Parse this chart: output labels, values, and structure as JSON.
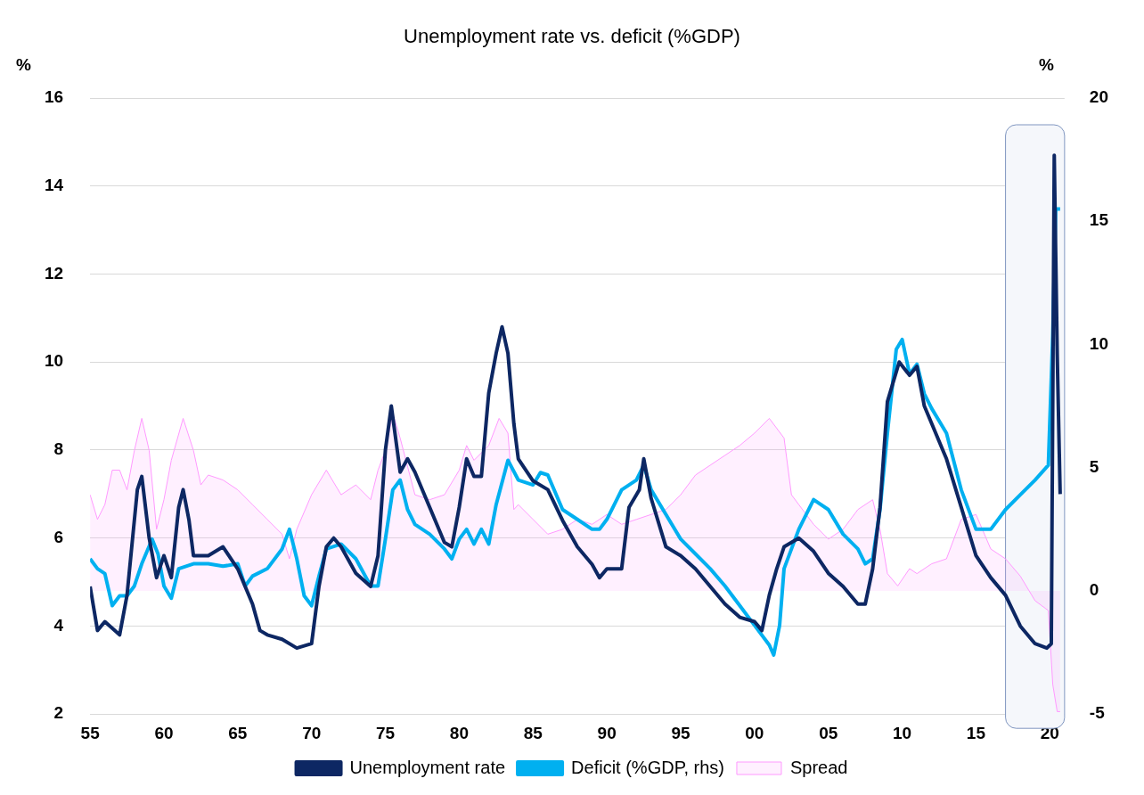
{
  "chart_data": {
    "type": "line",
    "title": "Unemployment rate vs. deficit (%GDP)",
    "ylabel": "%",
    "y2label": "%",
    "xlim": [
      1955,
      2021
    ],
    "xticks": [
      {
        "value": 1955,
        "label": "55"
      },
      {
        "value": 1960,
        "label": "60"
      },
      {
        "value": 1965,
        "label": "65"
      },
      {
        "value": 1970,
        "label": "70"
      },
      {
        "value": 1975,
        "label": "75"
      },
      {
        "value": 1980,
        "label": "80"
      },
      {
        "value": 1985,
        "label": "85"
      },
      {
        "value": 1990,
        "label": "90"
      },
      {
        "value": 1995,
        "label": "95"
      },
      {
        "value": 2000,
        "label": "00"
      },
      {
        "value": 2005,
        "label": "05"
      },
      {
        "value": 2010,
        "label": "10"
      },
      {
        "value": 2015,
        "label": "15"
      },
      {
        "value": 2020,
        "label": "20"
      }
    ],
    "ylim": [
      2,
      16
    ],
    "yticks": [
      2,
      4,
      6,
      8,
      10,
      12,
      14,
      16
    ],
    "y2lim": [
      -5,
      20
    ],
    "y2ticks": [
      -5,
      0,
      5,
      10,
      15,
      20
    ],
    "grid": "y",
    "legend": "bottom",
    "marker": "none",
    "line_style": "solid",
    "bands": [
      {
        "axis": "x",
        "from": 2017,
        "to": 2021,
        "color": "#f5f7fb"
      }
    ],
    "series": [
      {
        "name": "Spread",
        "type": "area",
        "axis": "y2",
        "color": "#ff99ff",
        "x": [
          1955,
          1955.5,
          1956,
          1956.5,
          1957,
          1957.5,
          1958,
          1958.5,
          1959,
          1959.5,
          1960,
          1960.5,
          1961.3,
          1962,
          1962.5,
          1963,
          1964,
          1965,
          1966,
          1967,
          1968,
          1968.5,
          1969,
          1970,
          1971,
          1972,
          1973,
          1974,
          1974.5,
          1975,
          1975.5,
          1976,
          1977,
          1978,
          1979,
          1980,
          1980.5,
          1981,
          1982,
          1982.7,
          1983.3,
          1983.7,
          1984,
          1985,
          1986,
          1987,
          1988,
          1989,
          1990,
          1991,
          1992,
          1993,
          1994,
          1995,
          1996,
          1997,
          1998,
          1999,
          2000,
          2001,
          2002,
          2002.5,
          2003,
          2004,
          2005,
          2006,
          2007,
          2008,
          2008.5,
          2009,
          2009.7,
          2010.5,
          2011,
          2012,
          2013,
          2014,
          2015,
          2016,
          2017,
          2018,
          2019,
          2019.9,
          2020.2,
          2020.5,
          2020.7
        ],
        "values": [
          3.9,
          2.9,
          3.5,
          4.9,
          4.9,
          4.1,
          5.7,
          7.0,
          5.7,
          2.5,
          3.7,
          5.3,
          7.0,
          5.7,
          4.3,
          4.7,
          4.5,
          4.1,
          3.5,
          2.9,
          2.3,
          1.3,
          2.5,
          3.9,
          4.9,
          3.9,
          4.3,
          3.7,
          4.9,
          5.7,
          7.2,
          6.2,
          3.9,
          3.7,
          3.9,
          4.9,
          5.9,
          5.3,
          5.9,
          7.0,
          6.4,
          3.3,
          3.5,
          2.9,
          2.3,
          2.5,
          2.9,
          2.7,
          3.1,
          2.7,
          2.9,
          3.1,
          3.3,
          3.9,
          4.7,
          5.1,
          5.5,
          5.9,
          6.4,
          7.0,
          6.2,
          3.9,
          3.5,
          2.7,
          2.1,
          2.5,
          3.3,
          3.7,
          2.5,
          0.7,
          0.2,
          0.9,
          0.7,
          1.1,
          1.3,
          2.9,
          3.1,
          1.7,
          1.3,
          0.6,
          -0.4,
          -0.8,
          -3.8,
          -4.9,
          -4.9
        ]
      },
      {
        "name": "Unemployment rate",
        "color": "#0d2763",
        "x": [
          1955,
          1955.5,
          1956,
          1957,
          1957.5,
          1958.2,
          1958.5,
          1959,
          1959.5,
          1960,
          1960.5,
          1961,
          1961.3,
          1961.7,
          1962,
          1963,
          1964,
          1965,
          1966,
          1966.5,
          1967,
          1968,
          1969,
          1970,
          1970.5,
          1971,
          1971.5,
          1972,
          1973,
          1974,
          1974.5,
          1975,
          1975.4,
          1976,
          1976.5,
          1977,
          1978,
          1979,
          1979.5,
          1980,
          1980.5,
          1981,
          1981.5,
          1982,
          1982.5,
          1982.9,
          1983.3,
          1983.7,
          1984,
          1985,
          1986,
          1987,
          1988,
          1989,
          1989.5,
          1990,
          1991,
          1991.5,
          1992.2,
          1992.5,
          1993,
          1994,
          1995,
          1996,
          1997,
          1998,
          1999,
          2000,
          2000.5,
          2001,
          2001.5,
          2002,
          2003,
          2004,
          2005,
          2006,
          2007,
          2007.5,
          2008,
          2008.5,
          2009,
          2009.8,
          2010.5,
          2011,
          2011.5,
          2012,
          2013,
          2014,
          2015,
          2016,
          2017,
          2018,
          2019,
          2019.8,
          2020.1,
          2020.3,
          2020.5,
          2020.7
        ],
        "values": [
          4.9,
          3.9,
          4.1,
          3.8,
          4.7,
          7.1,
          7.4,
          6.0,
          5.1,
          5.6,
          5.1,
          6.7,
          7.1,
          6.4,
          5.6,
          5.6,
          5.8,
          5.3,
          4.5,
          3.9,
          3.8,
          3.7,
          3.5,
          3.6,
          4.9,
          5.8,
          6.0,
          5.8,
          5.2,
          4.9,
          5.6,
          8.0,
          9.0,
          7.5,
          7.8,
          7.5,
          6.7,
          5.9,
          5.8,
          6.7,
          7.8,
          7.4,
          7.4,
          9.3,
          10.2,
          10.8,
          10.2,
          8.6,
          7.8,
          7.3,
          7.1,
          6.4,
          5.8,
          5.4,
          5.1,
          5.3,
          5.3,
          6.7,
          7.1,
          7.8,
          6.9,
          5.8,
          5.6,
          5.3,
          4.9,
          4.5,
          4.2,
          4.1,
          3.9,
          4.7,
          5.3,
          5.8,
          6.0,
          5.7,
          5.2,
          4.9,
          4.5,
          4.5,
          5.3,
          6.7,
          9.1,
          10.0,
          9.7,
          9.9,
          9.0,
          8.6,
          7.8,
          6.7,
          5.6,
          5.1,
          4.7,
          4.0,
          3.6,
          3.5,
          3.6,
          14.7,
          10.2,
          7.0
        ]
      },
      {
        "name": "Deficit (%GDP, rhs)",
        "axis": "y2",
        "color": "#00b0f0",
        "x": [
          1955,
          1955.5,
          1956,
          1956.5,
          1957,
          1957.5,
          1958,
          1958.5,
          1959.2,
          1959.6,
          1960,
          1960.5,
          1961,
          1962,
          1963,
          1964,
          1965,
          1965.5,
          1966,
          1967,
          1968,
          1968.5,
          1969,
          1969.5,
          1970,
          1970.5,
          1971,
          1972,
          1973,
          1974,
          1974.5,
          1975,
          1975.5,
          1976,
          1976.5,
          1977,
          1978,
          1979,
          1979.5,
          1980,
          1980.5,
          1981,
          1981.5,
          1982,
          1982.5,
          1983.3,
          1984,
          1985,
          1985.5,
          1986,
          1987,
          1988,
          1989,
          1989.5,
          1990,
          1991,
          1992,
          1992.5,
          1993,
          1994,
          1995,
          1996,
          1997,
          1998,
          1999,
          2000,
          2001,
          2001.3,
          2001.7,
          2002,
          2003,
          2004,
          2005,
          2006,
          2007,
          2007.5,
          2008,
          2008.5,
          2009,
          2009.6,
          2010,
          2010.5,
          2011,
          2011.5,
          2012,
          2013,
          2014,
          2015,
          2016,
          2017,
          2018,
          2019,
          2019.9,
          2020.2,
          2020.4,
          2020.7
        ],
        "values": [
          1.3,
          0.9,
          0.7,
          -0.6,
          -0.2,
          -0.2,
          0.2,
          1.1,
          2.1,
          1.5,
          0.2,
          -0.3,
          0.9,
          1.1,
          1.1,
          1.0,
          1.1,
          0.2,
          0.6,
          0.9,
          1.7,
          2.5,
          1.3,
          -0.2,
          -0.6,
          0.6,
          1.7,
          1.9,
          1.3,
          0.2,
          0.2,
          2.1,
          4.1,
          4.5,
          3.3,
          2.7,
          2.3,
          1.7,
          1.3,
          2.1,
          2.5,
          1.9,
          2.5,
          1.9,
          3.5,
          5.3,
          4.5,
          4.3,
          4.8,
          4.7,
          3.3,
          2.9,
          2.5,
          2.5,
          2.9,
          4.1,
          4.5,
          5.1,
          4.1,
          3.1,
          2.1,
          1.5,
          0.9,
          0.2,
          -0.6,
          -1.4,
          -2.2,
          -2.6,
          -1.4,
          0.9,
          2.5,
          3.7,
          3.3,
          2.3,
          1.7,
          1.1,
          1.3,
          3.3,
          6.4,
          9.8,
          10.2,
          8.8,
          9.2,
          8.0,
          7.4,
          6.4,
          4.1,
          2.5,
          2.5,
          3.3,
          3.9,
          4.5,
          5.1,
          10.4,
          15.5,
          15.5
        ]
      }
    ]
  }
}
